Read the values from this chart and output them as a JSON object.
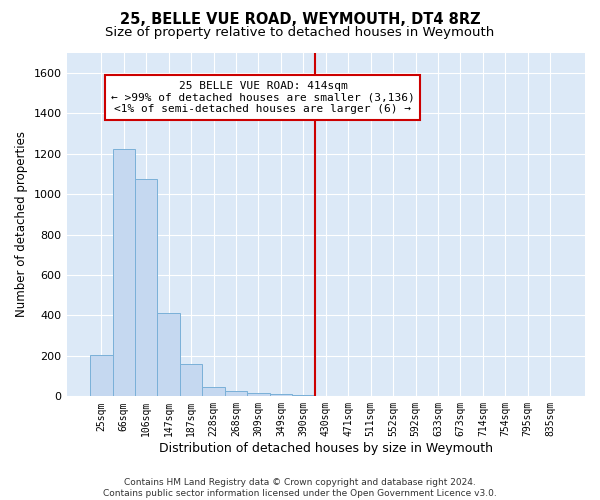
{
  "title": "25, BELLE VUE ROAD, WEYMOUTH, DT4 8RZ",
  "subtitle": "Size of property relative to detached houses in Weymouth",
  "xlabel": "Distribution of detached houses by size in Weymouth",
  "ylabel": "Number of detached properties",
  "bar_color": "#c5d8f0",
  "bar_edge_color": "#7ab0d8",
  "background_color": "#dce9f7",
  "grid_color": "#ffffff",
  "categories": [
    "25sqm",
    "66sqm",
    "106sqm",
    "147sqm",
    "187sqm",
    "228sqm",
    "268sqm",
    "309sqm",
    "349sqm",
    "390sqm",
    "430sqm",
    "471sqm",
    "511sqm",
    "552sqm",
    "592sqm",
    "633sqm",
    "673sqm",
    "714sqm",
    "754sqm",
    "795sqm",
    "835sqm"
  ],
  "values": [
    205,
    1225,
    1075,
    410,
    160,
    45,
    27,
    17,
    13,
    5,
    0,
    0,
    0,
    0,
    0,
    0,
    0,
    0,
    0,
    0,
    0
  ],
  "ylim": [
    0,
    1700
  ],
  "yticks": [
    0,
    200,
    400,
    600,
    800,
    1000,
    1200,
    1400,
    1600
  ],
  "annotation_text": "25 BELLE VUE ROAD: 414sqm\n← >99% of detached houses are smaller (3,136)\n<1% of semi-detached houses are larger (6) →",
  "annotation_box_color": "#ffffff",
  "annotation_box_edge_color": "#cc0000",
  "vline_x_index": 10.0,
  "vline_color": "#cc0000",
  "footer": "Contains HM Land Registry data © Crown copyright and database right 2024.\nContains public sector information licensed under the Open Government Licence v3.0.",
  "title_fontsize": 10.5,
  "subtitle_fontsize": 9.5,
  "xlabel_fontsize": 9,
  "ylabel_fontsize": 8.5,
  "fig_bg": "#ffffff"
}
